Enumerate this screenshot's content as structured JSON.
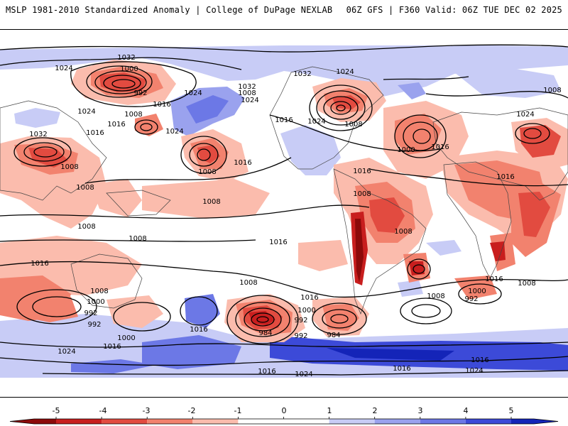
{
  "header": {
    "title_left": "MSLP 1981-2010 Standardized Anomaly | College of DuPage NEXLAB",
    "title_right": "06Z GFS | F360 Valid: 06Z TUE DEC 02 2025"
  },
  "colors": {
    "neg5": "#8c0a0a",
    "neg4": "#c81e1e",
    "neg3": "#e24b40",
    "neg2": "#f2826e",
    "neg1": "#fbbcad",
    "zero": "#ffffff",
    "pos1": "#c8ccf6",
    "pos2": "#9aa2ee",
    "pos3": "#6c78e6",
    "pos4": "#3c4ad8",
    "pos5": "#1424b8"
  },
  "colorbar": {
    "ticks": [
      "-5",
      "-4",
      "-3",
      "-2",
      "-1",
      "0",
      "1",
      "2",
      "3",
      "4",
      "5"
    ]
  },
  "isobars": {
    "labels": [
      "1032",
      "1024",
      "1000",
      "992",
      "1024",
      "1016",
      "1008",
      "1032",
      "1024",
      "1008",
      "1032",
      "1024",
      "1032",
      "1016",
      "1024",
      "1016",
      "1008",
      "1024",
      "1016",
      "1008",
      "1016",
      "1000",
      "1024",
      "1008",
      "1008",
      "1008",
      "1008",
      "1016",
      "1008",
      "1016",
      "1016",
      "1016",
      "1008",
      "1016",
      "1008",
      "1008",
      "1016",
      "1000",
      "992",
      "1016",
      "992",
      "984",
      "1000",
      "992",
      "984",
      "992",
      "1008",
      "1000",
      "1016",
      "1024",
      "1016",
      "1024",
      "1016",
      "1008",
      "1016",
      "1000",
      "992",
      "1008",
      "1024",
      "1016",
      "1024",
      "1008"
    ]
  }
}
